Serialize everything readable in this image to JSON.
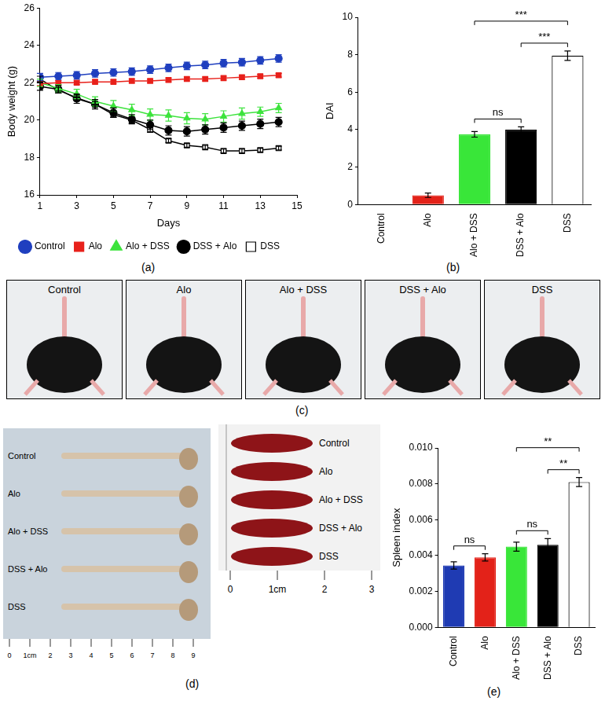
{
  "chart_data": [
    {
      "type": "line",
      "panel_label": "(a)",
      "x_label": "Days",
      "y_label": "Body weight (g)",
      "x": [
        1,
        2,
        3,
        4,
        5,
        6,
        7,
        8,
        9,
        10,
        11,
        12,
        13,
        14
      ],
      "xlim": [
        1,
        15
      ],
      "xticks": [
        1,
        3,
        5,
        7,
        9,
        11,
        13,
        15
      ],
      "ylim": [
        16,
        26
      ],
      "yticks": [
        16,
        18,
        20,
        22,
        24,
        26
      ],
      "grid": false,
      "legend": "bottom",
      "series": [
        {
          "name": "Control",
          "color": "#1f3fbf",
          "marker": "circle",
          "values": [
            22.3,
            22.35,
            22.4,
            22.5,
            22.55,
            22.6,
            22.7,
            22.8,
            22.9,
            22.95,
            23.05,
            23.1,
            23.2,
            23.3
          ],
          "errors": [
            0.2,
            0.2,
            0.2,
            0.2,
            0.2,
            0.2,
            0.2,
            0.2,
            0.2,
            0.2,
            0.2,
            0.2,
            0.2,
            0.2
          ]
        },
        {
          "name": "Alo",
          "color": "#e8211b",
          "marker": "square",
          "values": [
            21.95,
            22.0,
            22.0,
            22.05,
            22.05,
            22.1,
            22.1,
            22.15,
            22.2,
            22.2,
            22.25,
            22.3,
            22.35,
            22.4
          ],
          "errors": [
            0.1,
            0.1,
            0.1,
            0.1,
            0.1,
            0.1,
            0.1,
            0.1,
            0.1,
            0.1,
            0.1,
            0.1,
            0.1,
            0.1
          ]
        },
        {
          "name": "Alo + DSS",
          "color": "#3de33d",
          "marker": "triangle",
          "values": [
            22.0,
            21.7,
            21.4,
            21.0,
            20.75,
            20.55,
            20.3,
            20.25,
            20.1,
            20.05,
            20.2,
            20.35,
            20.45,
            20.65
          ],
          "errors": [
            0.2,
            0.2,
            0.25,
            0.25,
            0.3,
            0.3,
            0.3,
            0.3,
            0.3,
            0.3,
            0.3,
            0.3,
            0.25,
            0.25
          ]
        },
        {
          "name": "DSS + Alo",
          "color": "#000000",
          "marker": "circle",
          "values": [
            21.8,
            21.65,
            21.15,
            20.85,
            20.4,
            20.05,
            19.75,
            19.45,
            19.4,
            19.5,
            19.6,
            19.7,
            19.8,
            19.9
          ],
          "errors": [
            0.2,
            0.2,
            0.25,
            0.25,
            0.25,
            0.25,
            0.25,
            0.25,
            0.25,
            0.25,
            0.25,
            0.25,
            0.25,
            0.25
          ]
        },
        {
          "name": "DSS",
          "color": "#000000",
          "marker": "square-open",
          "values": [
            22.2,
            21.6,
            21.2,
            20.85,
            20.3,
            20.0,
            19.5,
            18.9,
            18.65,
            18.55,
            18.35,
            18.35,
            18.4,
            18.5
          ],
          "errors": [
            0.15,
            0.15,
            0.15,
            0.15,
            0.15,
            0.15,
            0.15,
            0.1,
            0.1,
            0.1,
            0.1,
            0.1,
            0.1,
            0.1
          ]
        }
      ]
    },
    {
      "type": "bar",
      "panel_label": "(b)",
      "y_label": "DAI",
      "categories": [
        "Control",
        "Alo",
        "Alo + DSS",
        "DSS + Alo",
        "DSS"
      ],
      "values": [
        0,
        0.5,
        3.75,
        4.0,
        7.95
      ],
      "errors": [
        0,
        0.12,
        0.15,
        0.15,
        0.25
      ],
      "colors": [
        "#1f3bb3",
        "#e32219",
        "#39e639",
        "#000000",
        "#ffffff"
      ],
      "ylim": [
        0,
        10
      ],
      "yticks": [
        0,
        2,
        4,
        6,
        8,
        10
      ],
      "grid": false,
      "annotations": [
        {
          "from": "Alo + DSS",
          "to": "DSS",
          "text": "***"
        },
        {
          "from": "DSS + Alo",
          "to": "DSS",
          "text": "***"
        },
        {
          "from": "Alo + DSS",
          "to": "DSS + Alo",
          "text": "ns"
        }
      ]
    },
    {
      "type": "bar",
      "panel_label": "(e)",
      "y_label": "Spleen index",
      "categories": [
        "Control",
        "Alo",
        "Alo + DSS",
        "DSS + Alo",
        "DSS"
      ],
      "values": [
        0.00345,
        0.0039,
        0.0045,
        0.0046,
        0.0081
      ],
      "errors": [
        0.0002,
        0.0002,
        0.00025,
        0.00035,
        0.00025
      ],
      "colors": [
        "#1f3bb3",
        "#e32219",
        "#39e639",
        "#000000",
        "#ffffff"
      ],
      "ylim": [
        0,
        0.01
      ],
      "yticks": [
        {
          "value": 0,
          "label": "0.000"
        },
        {
          "value": 0.002,
          "label": "0.002"
        },
        {
          "value": 0.004,
          "label": "0.004"
        },
        {
          "value": 0.006,
          "label": "0.006"
        },
        {
          "value": 0.008,
          "label": "0.008"
        },
        {
          "value": 0.01,
          "label": "0.010"
        }
      ],
      "grid": false,
      "annotations": [
        {
          "from": "Control",
          "to": "Alo",
          "text": "ns"
        },
        {
          "from": "Alo + DSS",
          "to": "DSS + Alo",
          "text": "ns"
        },
        {
          "from": "DSS + Alo",
          "to": "DSS",
          "text": "**"
        },
        {
          "from": "Alo + DSS",
          "to": "DSS",
          "text": "**"
        }
      ]
    }
  ],
  "photos": {
    "c": {
      "panel_label": "(c)",
      "captions": [
        "Control",
        "Alo",
        "Alo + DSS",
        "DSS + Alo",
        "DSS"
      ]
    },
    "d": {
      "panel_label": "(d)",
      "colon_labels": [
        "Control",
        "Alo",
        "Alo + DSS",
        "DSS + Alo",
        "DSS"
      ],
      "colon_ruler": [
        "0",
        "1cm",
        "2",
        "3",
        "4",
        "5",
        "6",
        "7",
        "8",
        "9"
      ],
      "spleen_labels": [
        "Control",
        "Alo",
        "Alo + DSS",
        "DSS + Alo",
        "DSS"
      ],
      "spleen_ruler": [
        "0",
        "1cm",
        "2",
        "3"
      ]
    }
  }
}
